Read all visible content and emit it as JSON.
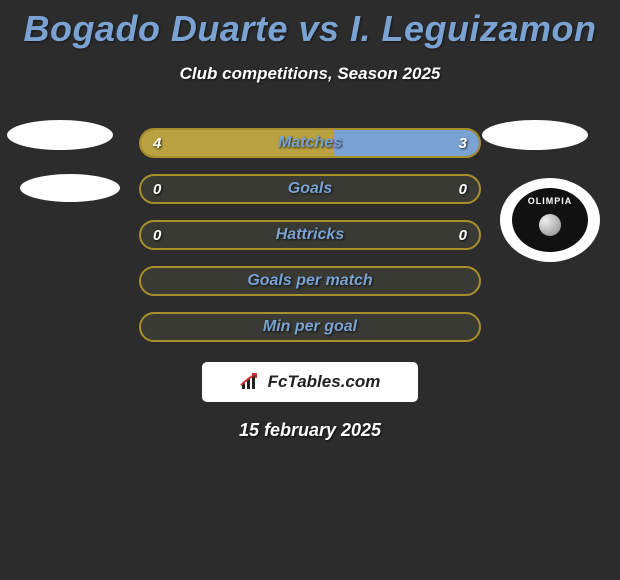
{
  "title": "Bogado Duarte vs I. Leguizamon",
  "subtitle": "Club competitions, Season 2025",
  "club_label": "OLIMPIA",
  "bars": [
    {
      "label": "Matches",
      "left": "4",
      "right": "3",
      "left_fill_pct": 57,
      "right_fill_pct": 43,
      "show_vals": true
    },
    {
      "label": "Goals",
      "left": "0",
      "right": "0",
      "left_fill_pct": 0,
      "right_fill_pct": 0,
      "show_vals": true
    },
    {
      "label": "Hattricks",
      "left": "0",
      "right": "0",
      "left_fill_pct": 0,
      "right_fill_pct": 0,
      "show_vals": true
    },
    {
      "label": "Goals per match",
      "left": "",
      "right": "",
      "left_fill_pct": 0,
      "right_fill_pct": 0,
      "show_vals": false
    },
    {
      "label": "Min per goal",
      "left": "",
      "right": "",
      "left_fill_pct": 0,
      "right_fill_pct": 0,
      "show_vals": false
    }
  ],
  "colors": {
    "accent_blue": "#7aa3d4",
    "accent_gold": "#b9a23f",
    "border_gold": "#a88f2c",
    "bg": "#2c2c2c"
  },
  "footer_brand": "FcTables.com",
  "date": "15 february 2025"
}
